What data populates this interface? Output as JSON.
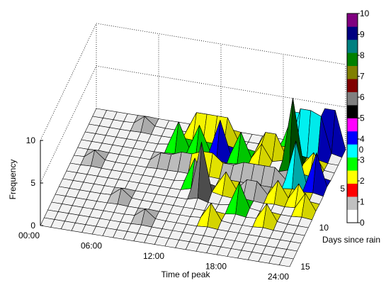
{
  "chart_data": {
    "type": "surface3d",
    "title": "",
    "xlabel": "Time of peak",
    "ylabel": "Days since rain",
    "zlabel": "Frequency",
    "x_ticks": [
      "00:00",
      "06:00",
      "12:00",
      "18:00",
      "24:00"
    ],
    "y_ticks": [
      "0",
      "5",
      "10",
      "15"
    ],
    "z_ticks": [
      "0",
      "5",
      "10"
    ],
    "xlim": [
      0,
      24
    ],
    "ylim": [
      0,
      15
    ],
    "zlim": [
      0,
      10
    ],
    "grid": true,
    "colorbar": {
      "placement": "right",
      "ticks": [
        "0",
        "1",
        "2",
        "3",
        "4",
        "5",
        "6",
        "7",
        "8",
        "9",
        "10"
      ],
      "colors": [
        "#ffffff",
        "#c0c0c0",
        "#ff0000",
        "#ffff00",
        "#00ff00",
        "#00ffff",
        "#0000ff",
        "#ff00ff",
        "#000000",
        "#808080",
        "#800000",
        "#808000",
        "#008000",
        "#008080",
        "#000080",
        "#800080"
      ]
    },
    "peaks": [
      {
        "x": 10.5,
        "y": 1,
        "z": 5
      },
      {
        "x": 12.5,
        "y": 1,
        "z": 5
      },
      {
        "x": 17.5,
        "y": 2,
        "z": 5
      },
      {
        "x": 19.5,
        "y": 0,
        "z": 7
      },
      {
        "x": 20.5,
        "y": 1,
        "z": 10
      },
      {
        "x": 21.5,
        "y": 1,
        "z": 9
      },
      {
        "x": 22.5,
        "y": 0,
        "z": 9
      },
      {
        "x": 9,
        "y": 3,
        "z": 3
      },
      {
        "x": 11,
        "y": 3,
        "z": 3
      },
      {
        "x": 13,
        "y": 3,
        "z": 4
      },
      {
        "x": 15,
        "y": 3,
        "z": 3
      },
      {
        "x": 17,
        "y": 3,
        "z": 2
      },
      {
        "x": 20,
        "y": 3,
        "z": 8
      },
      {
        "x": 22,
        "y": 3,
        "z": 2
      },
      {
        "x": 8.5,
        "y": 5,
        "z": 2
      },
      {
        "x": 10.5,
        "y": 5,
        "z": 3
      },
      {
        "x": 12.5,
        "y": 5,
        "z": 4
      },
      {
        "x": 14.5,
        "y": 5,
        "z": 2
      },
      {
        "x": 16.5,
        "y": 5,
        "z": 3
      },
      {
        "x": 18.5,
        "y": 5,
        "z": 3
      },
      {
        "x": 21,
        "y": 5,
        "z": 5
      },
      {
        "x": 23,
        "y": 5,
        "z": 4
      },
      {
        "x": 12,
        "y": 7,
        "z": 3
      },
      {
        "x": 13,
        "y": 8,
        "z": 6
      },
      {
        "x": 15,
        "y": 7,
        "z": 2
      },
      {
        "x": 17.5,
        "y": 7,
        "z": 3
      },
      {
        "x": 20,
        "y": 7,
        "z": 2
      },
      {
        "x": 22,
        "y": 7,
        "z": 2
      },
      {
        "x": 17,
        "y": 9,
        "z": 3
      },
      {
        "x": 20,
        "y": 10,
        "z": 2
      },
      {
        "x": 23,
        "y": 8,
        "z": 2
      },
      {
        "x": 15,
        "y": 11,
        "z": 2
      },
      {
        "x": 9,
        "y": 12,
        "z": 1
      },
      {
        "x": 5,
        "y": 1,
        "z": 1
      },
      {
        "x": 2,
        "y": 6,
        "z": 1
      },
      {
        "x": 6,
        "y": 10,
        "z": 1
      }
    ]
  }
}
